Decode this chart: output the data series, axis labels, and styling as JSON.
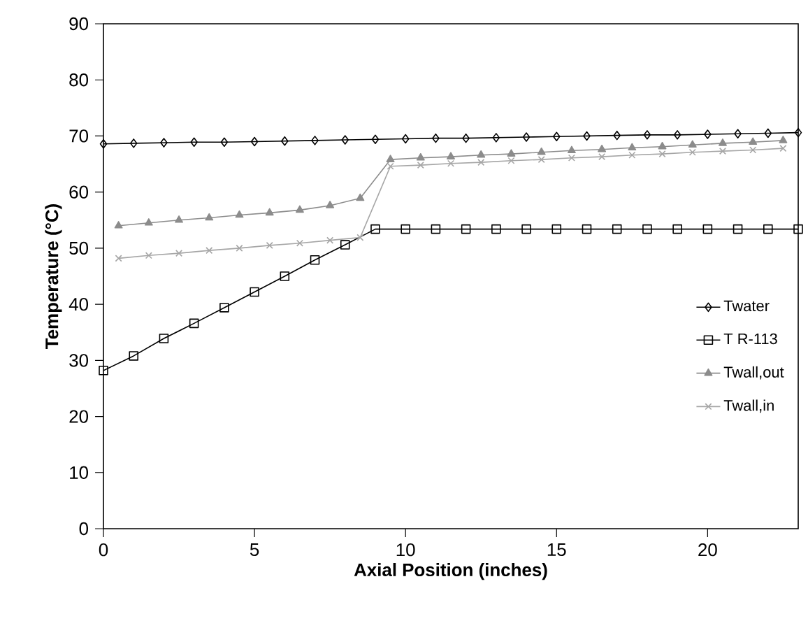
{
  "chart_data": {
    "type": "line",
    "xlabel": "Axial Position (inches)",
    "ylabel": "Temperature (°C)",
    "xlim": [
      0,
      23
    ],
    "xticks": [
      0,
      5,
      10,
      15,
      20
    ],
    "ylim": [
      0,
      90
    ],
    "yticks": [
      0,
      10,
      20,
      30,
      40,
      50,
      60,
      70,
      80,
      90
    ],
    "grid": false,
    "legend": "right",
    "line_style": "solid",
    "series": [
      {
        "name": "Twater",
        "color": "#000000",
        "marker": "diamond",
        "x": [
          0,
          1,
          2,
          3,
          4,
          5,
          6,
          7,
          8,
          9,
          10,
          11,
          12,
          13,
          14,
          15,
          16,
          17,
          18,
          19,
          20,
          21,
          22,
          23
        ],
        "values": [
          68.6,
          68.7,
          68.8,
          68.9,
          68.9,
          69.0,
          69.1,
          69.2,
          69.3,
          69.4,
          69.5,
          69.6,
          69.6,
          69.7,
          69.8,
          69.9,
          70.0,
          70.1,
          70.2,
          70.2,
          70.3,
          70.4,
          70.5,
          70.6
        ]
      },
      {
        "name": "T R-113",
        "color": "#000000",
        "marker": "square",
        "x": [
          0,
          1,
          2,
          3,
          4,
          5,
          6,
          7,
          8,
          9,
          10,
          11,
          12,
          13,
          14,
          15,
          16,
          17,
          18,
          19,
          20,
          21,
          22,
          23
        ],
        "values": [
          28.2,
          30.8,
          33.9,
          36.6,
          39.4,
          42.2,
          45.0,
          47.9,
          50.6,
          53.4,
          53.4,
          53.4,
          53.4,
          53.4,
          53.4,
          53.4,
          53.4,
          53.4,
          53.4,
          53.4,
          53.4,
          53.4,
          53.4,
          53.4
        ]
      },
      {
        "name": "Twall,out",
        "color": "#8c8c8c",
        "marker": "triangle",
        "x": [
          0.5,
          1.5,
          2.5,
          3.5,
          4.5,
          5.5,
          6.5,
          7.5,
          8.5,
          9.5,
          10.5,
          11.5,
          12.5,
          13.5,
          14.5,
          15.5,
          16.5,
          17.5,
          18.5,
          19.5,
          20.5,
          21.5,
          22.5
        ],
        "values": [
          54.0,
          54.5,
          55.0,
          55.4,
          55.9,
          56.3,
          56.8,
          57.6,
          58.9,
          65.8,
          66.1,
          66.3,
          66.6,
          66.8,
          67.1,
          67.4,
          67.6,
          67.9,
          68.1,
          68.4,
          68.7,
          68.9,
          69.2
        ]
      },
      {
        "name": "Twall,in",
        "color": "#a6a6a6",
        "marker": "cross",
        "x": [
          0.5,
          1.5,
          2.5,
          3.5,
          4.5,
          5.5,
          6.5,
          7.5,
          8.5,
          9.5,
          10.5,
          11.5,
          12.5,
          13.5,
          14.5,
          15.5,
          16.5,
          17.5,
          18.5,
          19.5,
          20.5,
          21.5,
          22.5
        ],
        "values": [
          48.2,
          48.7,
          49.1,
          49.6,
          50.0,
          50.5,
          50.9,
          51.4,
          51.9,
          64.6,
          64.8,
          65.1,
          65.3,
          65.6,
          65.8,
          66.1,
          66.3,
          66.6,
          66.8,
          67.1,
          67.3,
          67.5,
          67.8
        ]
      }
    ]
  }
}
